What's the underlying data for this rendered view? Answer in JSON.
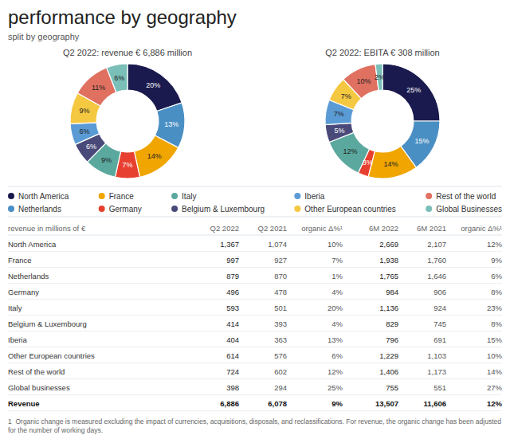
{
  "title": "performance by geography",
  "subtitle": "split by geography",
  "chart_data": [
    {
      "type": "pie",
      "title": "Q2 2022: revenue € 6,886 million",
      "categories": [
        "North America",
        "Netherlands",
        "France",
        "Germany",
        "Italy",
        "Belgium & Luxembourg",
        "Iberia",
        "Other European countries",
        "Rest of the world",
        "Global Businesses"
      ],
      "values": [
        20,
        13,
        14,
        7,
        9,
        6,
        6,
        9,
        11,
        6
      ],
      "value_labels": [
        "20%",
        "13%",
        "14%",
        "7%",
        "9%",
        "6%",
        "6%",
        "9%",
        "11%",
        "6%"
      ],
      "colors": [
        "#1a1a4e",
        "#4a8fc4",
        "#f0a500",
        "#e84030",
        "#5ba89e",
        "#4a4a7a",
        "#5b9bd5",
        "#f5c842",
        "#e07060",
        "#7abfb8"
      ],
      "data_labels": true,
      "legend": "bottom"
    },
    {
      "type": "pie",
      "title": "Q2 2022: EBITA € 308 million",
      "values": [
        25,
        15,
        14,
        3,
        12,
        5,
        7,
        7,
        10,
        2
      ],
      "value_labels": [
        "25%",
        "15%",
        "14%",
        "3%",
        "12%",
        "5%",
        "7%",
        "7%",
        "10%",
        "2%"
      ],
      "colors": [
        "#1a1a4e",
        "#4a8fc4",
        "#f0a500",
        "#e84030",
        "#5ba89e",
        "#4a4a7a",
        "#5b9bd5",
        "#f5c842",
        "#e07060",
        "#7abfb8"
      ],
      "data_labels": true
    },
    {
      "type": "table",
      "columns": [
        "revenue in millions of €",
        "Q2 2022",
        "Q2 2021",
        "organic Δ%¹",
        "6M 2022",
        "6M 2021",
        "organic Δ%¹"
      ],
      "rows": [
        [
          "North America",
          "1,367",
          "1,074",
          "10%",
          "2,669",
          "2,107",
          "12%"
        ],
        [
          "France",
          "997",
          "927",
          "7%",
          "1,938",
          "1,760",
          "9%"
        ],
        [
          "Netherlands",
          "879",
          "870",
          "1%",
          "1,765",
          "1,646",
          "6%"
        ],
        [
          "Germany",
          "496",
          "478",
          "4%",
          "984",
          "906",
          "8%"
        ],
        [
          "Italy",
          "593",
          "501",
          "20%",
          "1,136",
          "924",
          "23%"
        ],
        [
          "Belgium & Luxembourg",
          "414",
          "393",
          "4%",
          "829",
          "745",
          "8%"
        ],
        [
          "Iberia",
          "404",
          "363",
          "13%",
          "796",
          "691",
          "15%"
        ],
        [
          "Other European countries",
          "614",
          "576",
          "6%",
          "1,229",
          "1,103",
          "10%"
        ],
        [
          "Rest of the world",
          "724",
          "602",
          "12%",
          "1,406",
          "1,173",
          "14%"
        ],
        [
          "Global businesses",
          "398",
          "294",
          "25%",
          "755",
          "551",
          "27%"
        ],
        [
          "Revenue",
          "6,886",
          "6,078",
          "9%",
          "13,507",
          "11,606",
          "12%"
        ]
      ],
      "annotations": [
        "1  Organic change is measured excluding the impact of currencies, acquisitions, disposals, and reclassifications. For revenue, the organic change has been adjusted for the number of working days."
      ]
    }
  ]
}
